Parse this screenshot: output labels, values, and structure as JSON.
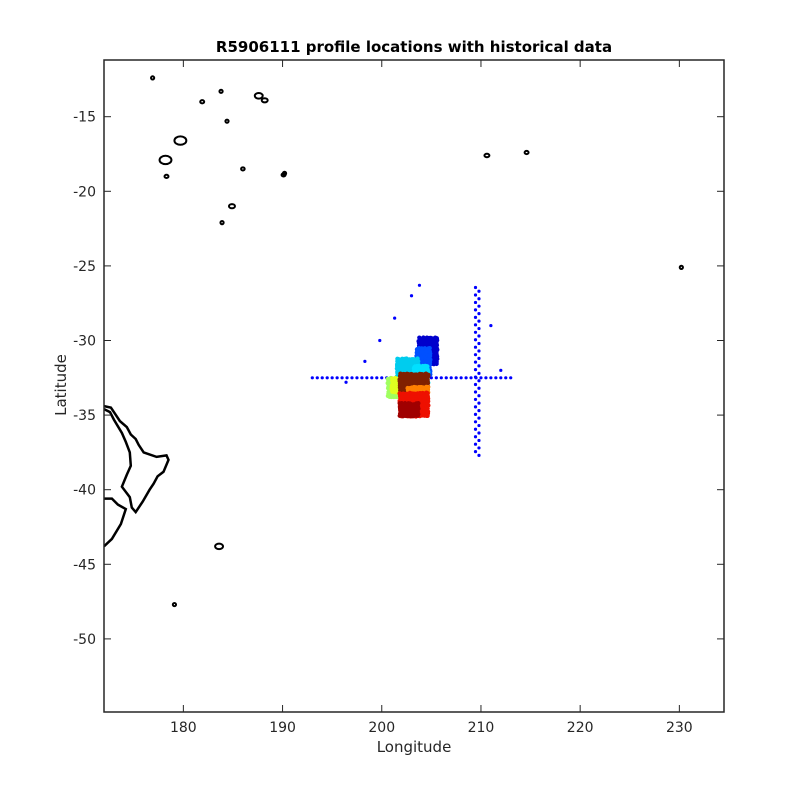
{
  "chart_data": {
    "type": "scatter",
    "title": "R5906111 profile locations with historical data",
    "xlabel": "Longitude",
    "ylabel": "Latitude",
    "xlim": [
      172,
      234.5
    ],
    "ylim": [
      -54.9,
      -11.2
    ],
    "xticks": [
      180,
      190,
      200,
      210,
      220,
      230
    ],
    "yticks": [
      -50,
      -45,
      -40,
      -35,
      -30,
      -25,
      -20,
      -15
    ],
    "grid": false,
    "colors": {
      "historical": "#0000ff",
      "coastline": "#000000",
      "frame": "#262626",
      "profile_colormap": [
        "#00008f",
        "#0000ff",
        "#0080ff",
        "#00ffff",
        "#80ff80",
        "#ffff00",
        "#ff8000",
        "#ff0000",
        "#800000"
      ]
    },
    "historical_points": {
      "horizontal_line": {
        "lat": -32.5,
        "lon_start": 193,
        "lon_end": 213,
        "step": 0.5
      },
      "vertical_line": {
        "lon": 209.8,
        "lat_start": -37.7,
        "lat_end": -26.5,
        "step": 0.5
      },
      "scattered": [
        {
          "x": 203.8,
          "y": -26.3
        },
        {
          "x": 203.0,
          "y": -27.0
        },
        {
          "x": 201.3,
          "y": -28.5
        },
        {
          "x": 199.8,
          "y": -30.0
        },
        {
          "x": 198.3,
          "y": -31.4
        },
        {
          "x": 196.4,
          "y": -32.8
        },
        {
          "x": 211.0,
          "y": -29.0
        },
        {
          "x": 212.0,
          "y": -32.0
        }
      ]
    },
    "profile_clusters": [
      {
        "lon_min": 203.7,
        "lon_max": 205.5,
        "lat_min": -31.6,
        "lat_max": -29.9,
        "color": "#0000cc"
      },
      {
        "lon_min": 203.5,
        "lon_max": 204.8,
        "lat_min": -32.3,
        "lat_max": -30.6,
        "color": "#0050ff"
      },
      {
        "lon_min": 201.5,
        "lon_max": 203.6,
        "lat_min": -32.6,
        "lat_max": -31.3,
        "color": "#00ccee"
      },
      {
        "lon_min": 203.2,
        "lon_max": 204.6,
        "lat_min": -32.9,
        "lat_max": -31.8,
        "color": "#00e0ff"
      },
      {
        "lon_min": 200.6,
        "lon_max": 201.8,
        "lat_min": -33.8,
        "lat_max": -32.6,
        "color": "#a0ff60"
      },
      {
        "lon_min": 201.0,
        "lon_max": 202.3,
        "lat_min": -33.5,
        "lat_max": -32.6,
        "color": "#e0ff20"
      },
      {
        "lon_min": 201.8,
        "lon_max": 204.6,
        "lat_min": -33.4,
        "lat_max": -32.3,
        "color": "#802000"
      },
      {
        "lon_min": 202.6,
        "lon_max": 204.6,
        "lat_min": -34.3,
        "lat_max": -33.2,
        "color": "#ff8000"
      },
      {
        "lon_min": 201.8,
        "lon_max": 204.6,
        "lat_min": -35.1,
        "lat_max": -33.6,
        "color": "#ee1000"
      },
      {
        "lon_min": 201.8,
        "lon_max": 203.6,
        "lat_min": -35.1,
        "lat_max": -34.3,
        "color": "#a00000"
      }
    ],
    "coastlines": {
      "new_zealand": [
        [
          172,
          -34.4
        ],
        [
          172.7,
          -34.5
        ],
        [
          173.2,
          -35.0
        ],
        [
          173.6,
          -35.4
        ],
        [
          174.3,
          -35.8
        ],
        [
          174.7,
          -36.3
        ],
        [
          175.2,
          -36.6
        ],
        [
          175.5,
          -37.0
        ],
        [
          176.0,
          -37.5
        ],
        [
          177.3,
          -37.8
        ],
        [
          178.3,
          -37.7
        ],
        [
          178.5,
          -38.0
        ],
        [
          178.0,
          -38.8
        ],
        [
          177.4,
          -39.1
        ],
        [
          177.0,
          -39.6
        ],
        [
          176.6,
          -40.0
        ],
        [
          175.9,
          -40.8
        ],
        [
          175.2,
          -41.5
        ],
        [
          174.8,
          -41.2
        ],
        [
          174.6,
          -40.5
        ],
        [
          173.8,
          -39.8
        ],
        [
          174.3,
          -39.0
        ],
        [
          174.7,
          -38.4
        ],
        [
          174.6,
          -37.5
        ],
        [
          174.2,
          -36.8
        ],
        [
          173.8,
          -36.2
        ],
        [
          173.0,
          -35.3
        ],
        [
          172.6,
          -34.8
        ],
        [
          172,
          -34.6
        ]
      ],
      "south_island": [
        [
          172,
          -40.6
        ],
        [
          172.8,
          -40.6
        ],
        [
          173.4,
          -41.0
        ],
        [
          174.2,
          -41.3
        ],
        [
          173.7,
          -42.3
        ],
        [
          172.8,
          -43.3
        ],
        [
          172.0,
          -43.8
        ]
      ],
      "islands": [
        {
          "x": 176.9,
          "y": -12.4,
          "r": 0.15
        },
        {
          "x": 181.9,
          "y": -14.0,
          "r": 0.2
        },
        {
          "x": 183.8,
          "y": -13.3,
          "r": 0.12
        },
        {
          "x": 184.4,
          "y": -15.3,
          "r": 0.15
        },
        {
          "x": 187.6,
          "y": -13.6,
          "r": 0.4
        },
        {
          "x": 188.2,
          "y": -13.9,
          "r": 0.3
        },
        {
          "x": 179.7,
          "y": -16.6,
          "r": 0.6
        },
        {
          "x": 178.2,
          "y": -17.9,
          "r": 0.6
        },
        {
          "x": 178.3,
          "y": -19.0,
          "r": 0.2
        },
        {
          "x": 186.0,
          "y": -18.5,
          "r": 0.18
        },
        {
          "x": 190.1,
          "y": -18.9,
          "r": 0.2
        },
        {
          "x": 184.9,
          "y": -21.0,
          "r": 0.3
        },
        {
          "x": 183.9,
          "y": -22.1,
          "r": 0.12
        },
        {
          "x": 190.2,
          "y": -18.8,
          "r": 0.12
        },
        {
          "x": 210.6,
          "y": -17.6,
          "r": 0.25
        },
        {
          "x": 214.6,
          "y": -17.4,
          "r": 0.2
        },
        {
          "x": 230.2,
          "y": -25.1,
          "r": 0.15
        },
        {
          "x": 183.6,
          "y": -43.8,
          "r": 0.4
        },
        {
          "x": 179.1,
          "y": -47.7,
          "r": 0.15
        }
      ]
    }
  }
}
